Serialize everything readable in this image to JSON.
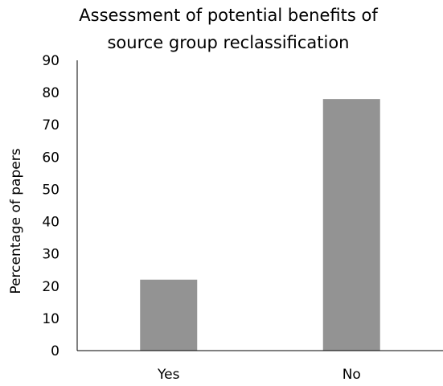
{
  "chart_data": {
    "type": "bar",
    "title_lines": [
      "Assessment of potential benefits of",
      "source group reclassification"
    ],
    "categories": [
      "Yes",
      "No"
    ],
    "values": [
      22,
      78
    ],
    "xlabel": "",
    "ylabel": "Percentage of papers",
    "ylim": [
      0,
      90
    ],
    "yticks": [
      0,
      10,
      20,
      30,
      40,
      50,
      60,
      70,
      80,
      90
    ],
    "bar_color": "#939393",
    "axis_color": "#000000",
    "grid": false,
    "legend": "none"
  }
}
